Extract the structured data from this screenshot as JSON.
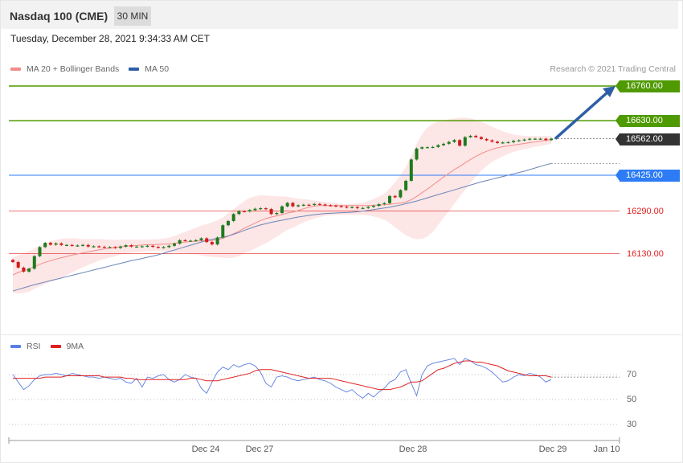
{
  "header": {
    "title": "Nasdaq 100 (CME)",
    "timeframe": "30 MIN",
    "timestamp": "Tuesday, December 28, 2021 9:34:33 AM CET"
  },
  "legend": {
    "ma20_label": "MA 20 + Bollinger Bands",
    "ma50_label": "MA 50",
    "credit": "Research © 2021 Trading Central"
  },
  "rsi_legend": {
    "rsi_label": "RSI",
    "ma_label": "9MA"
  },
  "colors": {
    "green": "#4f9a00",
    "blue": "#2d7cf6",
    "red": "#e02020",
    "dark": "#333333",
    "bull": "#1e7b1e",
    "bear": "#d01c1c",
    "band": "#fde3e3",
    "ma20": "#f28b8b",
    "ma50": "#6a86b8",
    "arrow": "#2e5fa6"
  },
  "levels": [
    {
      "value": "16760.00",
      "kind": "resistance",
      "color": "#4f9a00"
    },
    {
      "value": "16630.00",
      "kind": "resistance",
      "color": "#4f9a00"
    },
    {
      "value": "16562.00",
      "kind": "last",
      "color": "#333333"
    },
    {
      "value": "16425.00",
      "kind": "pivot",
      "color": "#2d7cf6"
    },
    {
      "value": "16290.00",
      "kind": "support",
      "color": "#e02020"
    },
    {
      "value": "16130.00",
      "kind": "support",
      "color": "#e02020"
    }
  ],
  "rsi_ticks": [
    "70",
    "50",
    "30"
  ],
  "x_ticks": [
    "Dec 24",
    "Dec 27",
    "Dec 28",
    "Dec 29",
    "Jan 10"
  ],
  "chart_data": {
    "type": "line",
    "title": "Nasdaq 100 (CME)",
    "timeframe": "30 MIN",
    "price_close": [
      16099,
      16078,
      16063,
      16074,
      16121,
      16155,
      16171,
      16164,
      16169,
      16163,
      16163,
      16160,
      16161,
      16163,
      16157,
      16158,
      16156,
      16155,
      16155,
      16152,
      16157,
      16162,
      16157,
      16157,
      16158,
      16160,
      16156,
      16153,
      16155,
      16160,
      16168,
      16181,
      16179,
      16179,
      16181,
      16188,
      16174,
      16165,
      16191,
      16237,
      16253,
      16279,
      16290,
      16289,
      16294,
      16299,
      16301,
      16298,
      16279,
      16283,
      16308,
      16321,
      16308,
      16312,
      16314,
      16313,
      16317,
      16315,
      16312,
      16311,
      16309,
      16307,
      16304,
      16305,
      16301,
      16302,
      16306,
      16310,
      16316,
      16320,
      16347,
      16342,
      16369,
      16404,
      16484,
      16525,
      16530,
      16530,
      16531,
      16538,
      16543,
      16550,
      16557,
      16536,
      16568,
      16573,
      16568,
      16561,
      16556,
      16551,
      16546,
      16548,
      16549,
      16554,
      16556,
      16559,
      16562,
      16562,
      16562,
      16557,
      16562
    ],
    "ma20": [
      16050,
      16060,
      16066,
      16072,
      16082,
      16090,
      16098,
      16104,
      16110,
      16115,
      16120,
      16125,
      16129,
      16133,
      16137,
      16141,
      16145,
      16148,
      16151,
      16154,
      16156,
      16158,
      16160,
      16161,
      16163,
      16164,
      16164,
      16165,
      16166,
      16167,
      16169,
      16172,
      16174,
      16176,
      16177,
      16179,
      16179,
      16180,
      16183,
      16188,
      16196,
      16205,
      16215,
      16226,
      16236,
      16245,
      16255,
      16262,
      16268,
      16272,
      16277,
      16283,
      16286,
      16292,
      16299,
      16305,
      16309,
      16311,
      16311,
      16311,
      16311,
      16311,
      16311,
      16311,
      16311,
      16311,
      16311,
      16312,
      16313,
      16314,
      16316,
      16318,
      16320,
      16324,
      16333,
      16345,
      16359,
      16373,
      16388,
      16403,
      16418,
      16432,
      16446,
      16458,
      16471,
      16484,
      16496,
      16506,
      16515,
      16522,
      16528,
      16532,
      16535,
      16538,
      16541,
      16544,
      16547,
      16550,
      16553,
      16556,
      16559
    ],
    "bb_upper": [
      16115,
      16125,
      16133,
      16140,
      16150,
      16160,
      16170,
      16177,
      16182,
      16186,
      16188,
      16188,
      16187,
      16185,
      16185,
      16185,
      16185,
      16184,
      16183,
      16182,
      16183,
      16183,
      16183,
      16183,
      16183,
      16184,
      16184,
      16185,
      16187,
      16190,
      16197,
      16205,
      16212,
      16220,
      16228,
      16236,
      16242,
      16248,
      16255,
      16266,
      16282,
      16298,
      16313,
      16328,
      16340,
      16346,
      16350,
      16349,
      16347,
      16346,
      16345,
      16344,
      16340,
      16337,
      16335,
      16333,
      16330,
      16327,
      16325,
      16322,
      16320,
      16318,
      16316,
      16318,
      16320,
      16322,
      16328,
      16336,
      16345,
      16356,
      16375,
      16398,
      16425,
      16456,
      16498,
      16543,
      16580,
      16604,
      16618,
      16627,
      16631,
      16635,
      16638,
      16641,
      16641,
      16638,
      16633,
      16625,
      16617,
      16607,
      16598,
      16590,
      16583,
      16578,
      16575,
      16573,
      16572,
      16572,
      16572,
      16572,
      16572
    ],
    "bb_lower": [
      15985,
      15980,
      15982,
      15988,
      15998,
      16007,
      16016,
      16024,
      16032,
      16040,
      16050,
      16060,
      16070,
      16079,
      16088,
      16096,
      16104,
      16110,
      16116,
      16121,
      16127,
      16131,
      16134,
      16136,
      16138,
      16140,
      16141,
      16140,
      16139,
      16137,
      16135,
      16133,
      16132,
      16131,
      16128,
      16124,
      16120,
      16118,
      16117,
      16115,
      16114,
      16115,
      16121,
      16131,
      16140,
      16150,
      16160,
      16170,
      16182,
      16194,
      16208,
      16220,
      16228,
      16238,
      16248,
      16256,
      16262,
      16268,
      16272,
      16275,
      16276,
      16276,
      16276,
      16276,
      16276,
      16276,
      16274,
      16270,
      16265,
      16258,
      16245,
      16230,
      16214,
      16200,
      16190,
      16184,
      16186,
      16195,
      16212,
      16238,
      16265,
      16290,
      16318,
      16345,
      16370,
      16395,
      16420,
      16442,
      16460,
      16475,
      16486,
      16496,
      16505,
      16512,
      16518,
      16523,
      16527,
      16532,
      16535,
      16539,
      16543
    ],
    "ma50": [
      15990,
      15996,
      16002,
      16008,
      16014,
      16019,
      16024,
      16029,
      16034,
      16039,
      16044,
      16049,
      16054,
      16059,
      16064,
      16069,
      16074,
      16079,
      16084,
      16089,
      16094,
      16099,
      16104,
      16108,
      16112,
      16117,
      16121,
      16126,
      16132,
      16138,
      16144,
      16150,
      16156,
      16162,
      16168,
      16174,
      16180,
      16184,
      16188,
      16192,
      16197,
      16203,
      16210,
      16218,
      16225,
      16232,
      16238,
      16243,
      16248,
      16252,
      16256,
      16260,
      16264,
      16268,
      16271,
      16274,
      16277,
      16279,
      16281,
      16282,
      16283,
      16284,
      16285,
      16286,
      16288,
      16290,
      16293,
      16296,
      16299,
      16302,
      16305,
      16309,
      16313,
      16318,
      16323,
      16328,
      16334,
      16340,
      16346,
      16352,
      16358,
      16364,
      16370,
      16376,
      16382,
      16388,
      16394,
      16400,
      16405,
      16410,
      16415,
      16420,
      16425,
      16430,
      16435,
      16440,
      16446,
      16452,
      16458,
      16464,
      16469
    ],
    "rsi": [
      70,
      64,
      58,
      61,
      66,
      69,
      70,
      70,
      71,
      70,
      69,
      71,
      70,
      69,
      68,
      68,
      67,
      68,
      67,
      66,
      67,
      64,
      63,
      67,
      60,
      68,
      67,
      69,
      70,
      66,
      64,
      66,
      70,
      68,
      67,
      59,
      55,
      64,
      72,
      76,
      74,
      78,
      76,
      78,
      79,
      77,
      72,
      63,
      60,
      68,
      69,
      68,
      66,
      65,
      66,
      67,
      68,
      66,
      65,
      63,
      60,
      58,
      56,
      58,
      54,
      51,
      55,
      52,
      56,
      59,
      64,
      66,
      72,
      74,
      63,
      53,
      70,
      77,
      79,
      80,
      81,
      82,
      83,
      78,
      83,
      81,
      78,
      77,
      75,
      72,
      68,
      64,
      65,
      68,
      70,
      69,
      71,
      70,
      68,
      64,
      66
    ],
    "rsi_ma": [
      67,
      67,
      67,
      67,
      67,
      67,
      68,
      68,
      68,
      68,
      69,
      69,
      69,
      69,
      69,
      69,
      69,
      68,
      68,
      68,
      68,
      67,
      67,
      66,
      66,
      66,
      66,
      66,
      66,
      66,
      66,
      66,
      66,
      67,
      67,
      66,
      65,
      65,
      65,
      66,
      67,
      68,
      69,
      70,
      71,
      73,
      74,
      74,
      74,
      73,
      72,
      71,
      70,
      69,
      68,
      67,
      67,
      67,
      67,
      67,
      66,
      65,
      64,
      63,
      62,
      61,
      60,
      59,
      58,
      58,
      58,
      59,
      60,
      62,
      64,
      64,
      65,
      68,
      71,
      74,
      75,
      77,
      79,
      80,
      81,
      81,
      80,
      80,
      79,
      78,
      77,
      75,
      73,
      72,
      71,
      70,
      69,
      69,
      69,
      69,
      68
    ],
    "rsi_range": [
      0,
      100
    ],
    "rsi_guides": [
      70,
      50,
      30
    ],
    "levels": [
      16760,
      16630,
      16562,
      16425,
      16290,
      16130
    ],
    "projection": {
      "from": 16562,
      "to": 16760
    },
    "x_ticks": [
      "Dec 24",
      "Dec 27",
      "Dec 28",
      "Dec 29",
      "Jan 10"
    ],
    "grid": false
  }
}
